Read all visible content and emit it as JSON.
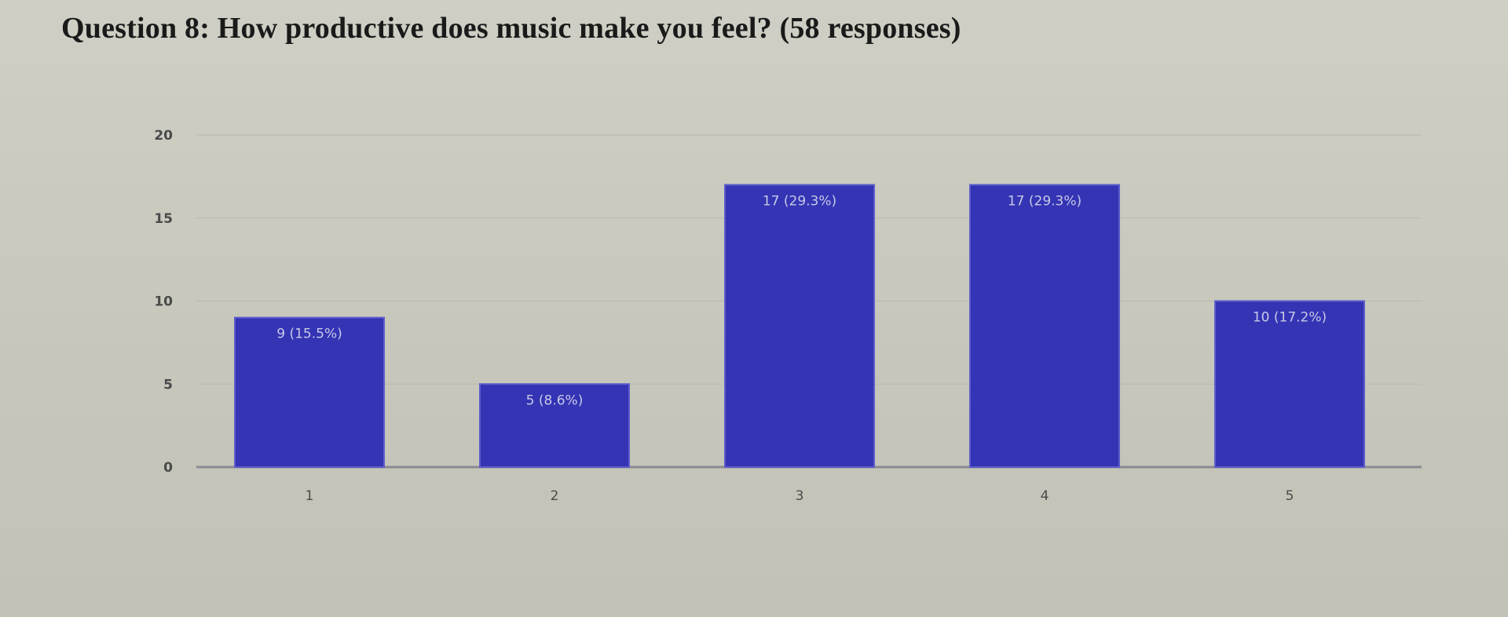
{
  "title": "Question 8: How productive does music make you feel? (58 responses)",
  "chart_data": {
    "type": "bar",
    "title": "Question 8: How productive does music make you feel? (58 responses)",
    "categories": [
      "1",
      "2",
      "3",
      "4",
      "5"
    ],
    "values": [
      9,
      5,
      17,
      17,
      10
    ],
    "data_labels": [
      "9 (15.5%)",
      "5 (8.6%)",
      "17 (29.3%)",
      "17 (29.3%)",
      "10 (17.2%)"
    ],
    "yticks": [
      0,
      5,
      10,
      15,
      20
    ],
    "ylim": [
      0,
      20
    ],
    "xlabel": "",
    "ylabel": "",
    "grid": true,
    "bar_color": "#3434b4"
  }
}
